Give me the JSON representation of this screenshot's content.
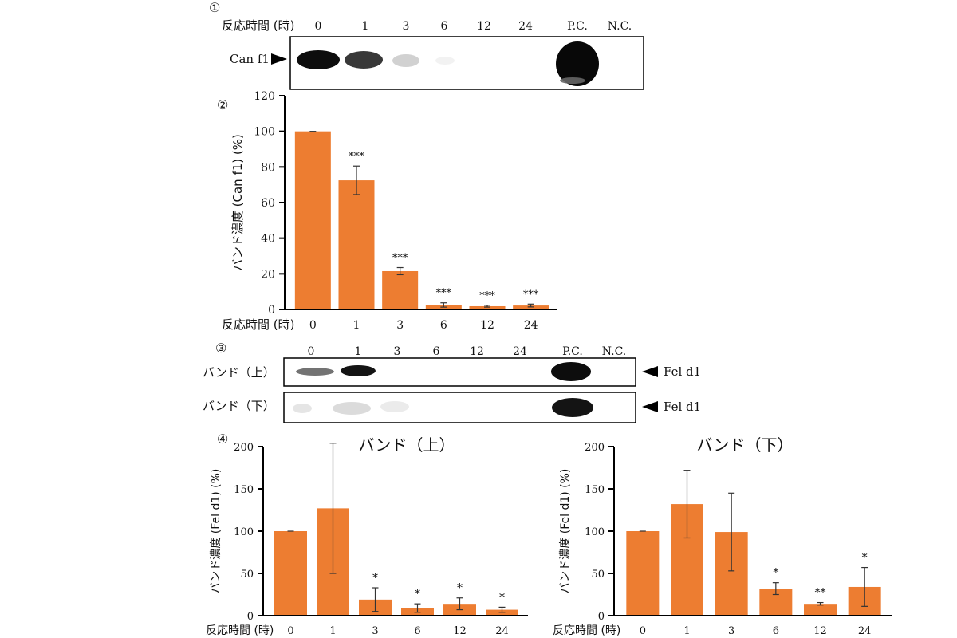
{
  "panels": {
    "blot1": {
      "label": "①",
      "time_label": "反応時間 (時)",
      "lanes": [
        "0",
        "1",
        "3",
        "6",
        "12",
        "24",
        "P.C.",
        "N.C."
      ],
      "band_label": "Can f1"
    },
    "blot3": {
      "label": "③",
      "lanes": [
        "0",
        "1",
        "3",
        "6",
        "12",
        "24",
        "P.C.",
        "N.C."
      ],
      "row_upper": "バンド（上）",
      "row_lower": "バンド（下）",
      "band_label_upper": "Fel d1",
      "band_label_lower": "Fel d1"
    },
    "chart2_label": "②",
    "chart4_label": "④"
  },
  "colors": {
    "bar": "#ED7D31",
    "band": "#000000"
  },
  "chart_data": [
    {
      "type": "bar",
      "title": "",
      "xlabel": "反応時間 (時)",
      "ylabel": "バンド濃度 (Can f1) (%)",
      "categories": [
        "0",
        "1",
        "3",
        "6",
        "12",
        "24"
      ],
      "values": [
        100,
        72.5,
        21.5,
        2.5,
        1.8,
        2.2
      ],
      "errors": [
        0,
        8,
        2,
        1.2,
        0.5,
        0.8
      ],
      "annotations": [
        "",
        "***",
        "***",
        "***",
        "***",
        "***"
      ],
      "ylim": [
        0,
        120
      ],
      "yticks": [
        0,
        20,
        40,
        60,
        80,
        100,
        120
      ]
    },
    {
      "type": "bar",
      "title": "バンド（上）",
      "xlabel": "反応時間 (時)",
      "ylabel": "バンド濃度 (Fel d1) (%)",
      "categories": [
        "0",
        "1",
        "3",
        "6",
        "12",
        "24"
      ],
      "values": [
        100,
        127,
        19,
        9,
        14,
        7
      ],
      "errors": [
        0,
        77,
        14,
        5,
        7,
        3
      ],
      "annotations": [
        "",
        "",
        "*",
        "*",
        "*",
        "*"
      ],
      "ylim": [
        0,
        200
      ],
      "yticks": [
        0,
        50,
        100,
        150,
        200
      ]
    },
    {
      "type": "bar",
      "title": "バンド（下）",
      "xlabel": "反応時間 (時)",
      "ylabel": "バンド濃度 (Fel d1) (%)",
      "categories": [
        "0",
        "1",
        "3",
        "6",
        "12",
        "24"
      ],
      "values": [
        100,
        132,
        99,
        32,
        14,
        34
      ],
      "errors": [
        0,
        40,
        46,
        7,
        1.5,
        23
      ],
      "annotations": [
        "",
        "",
        "",
        "*",
        "**",
        "*"
      ],
      "ylim": [
        0,
        200
      ],
      "yticks": [
        0,
        50,
        100,
        150,
        200
      ]
    }
  ]
}
